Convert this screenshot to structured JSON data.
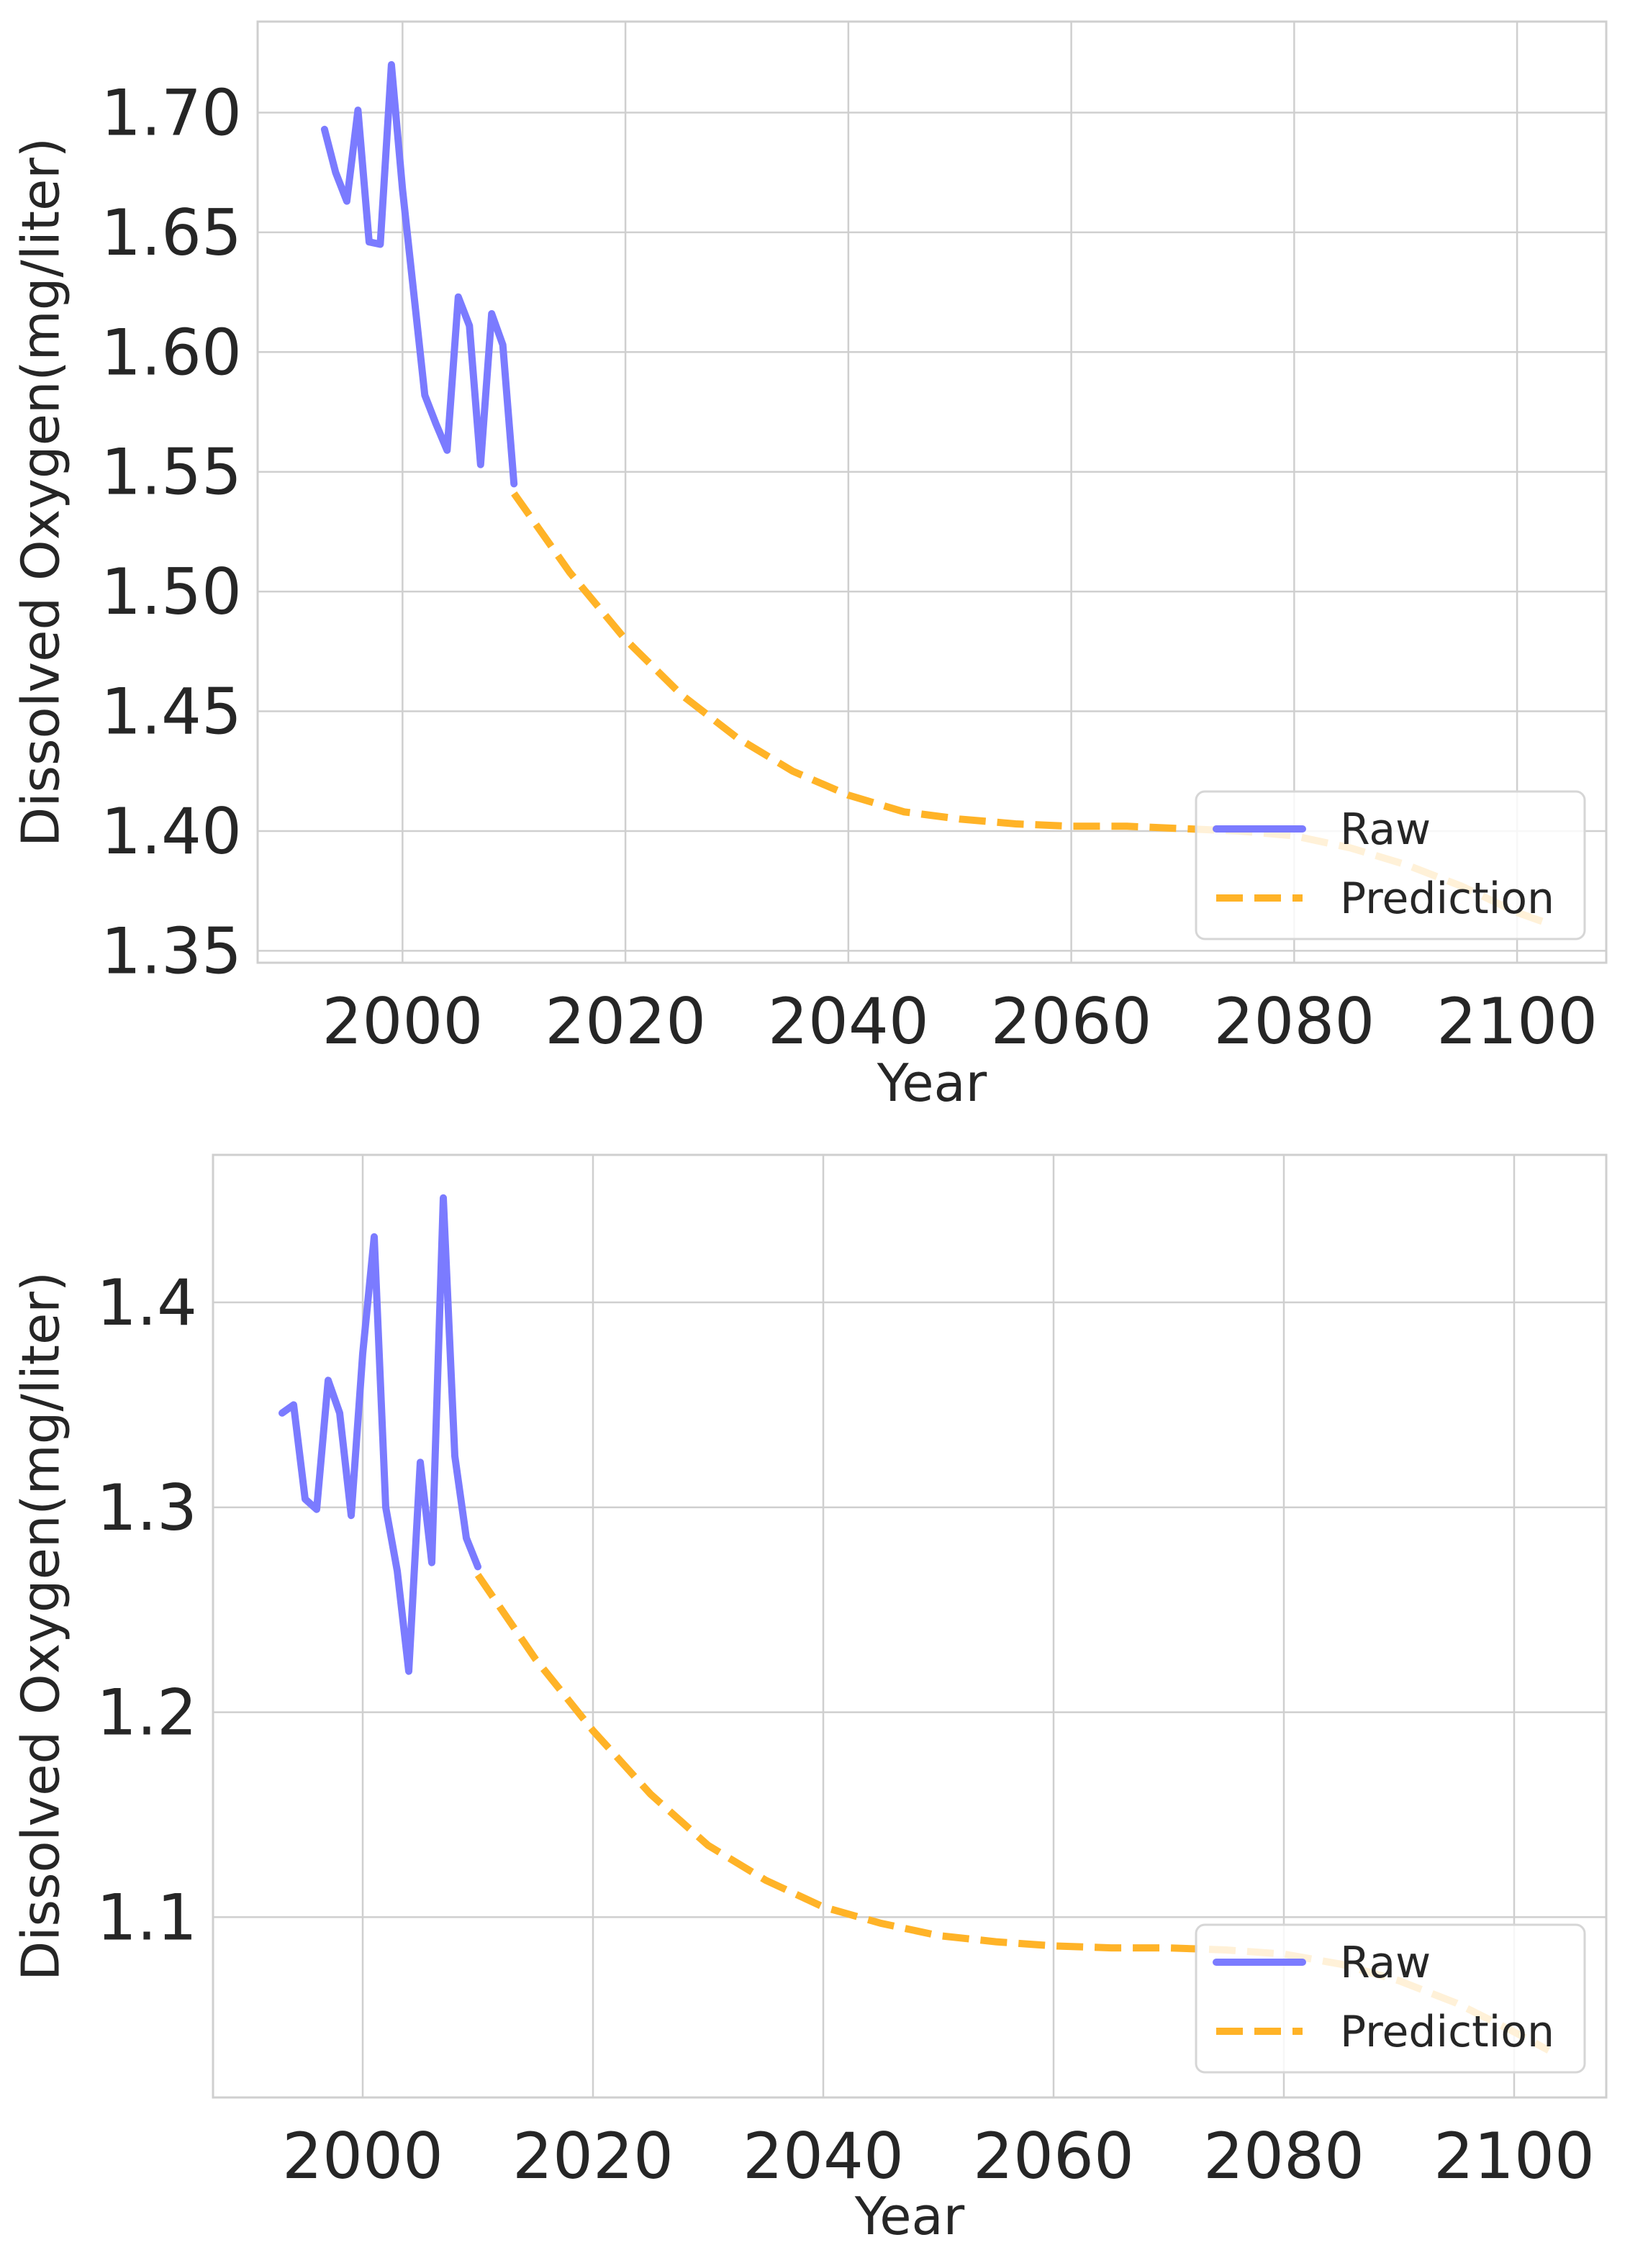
{
  "chart_data": [
    {
      "type": "line",
      "xlabel": "Year",
      "ylabel": "Dissolved Oxygen(mg/liter)",
      "xlim": [
        1987,
        2108
      ],
      "ylim": [
        1.345,
        1.738
      ],
      "xticks": [
        2000,
        2020,
        2040,
        2060,
        2080,
        2100
      ],
      "xtick_labels": [
        "2000",
        "2020",
        "2040",
        "2060",
        "2080",
        "2100"
      ],
      "yticks": [
        1.35,
        1.4,
        1.45,
        1.5,
        1.55,
        1.6,
        1.65,
        1.7
      ],
      "ytick_labels": [
        "1.35",
        "1.40",
        "1.45",
        "1.50",
        "1.55",
        "1.60",
        "1.65",
        "1.70"
      ],
      "grid": true,
      "legend": "lower-right",
      "series": [
        {
          "name": "Raw",
          "style": "solid",
          "color": "#7b7bff",
          "x": [
            1993,
            1994,
            1995,
            1996,
            1997,
            1998,
            1999,
            2000,
            2001,
            2002,
            2003,
            2004,
            2005,
            2006,
            2007,
            2008,
            2009,
            2010
          ],
          "y": [
            1.693,
            1.675,
            1.663,
            1.701,
            1.646,
            1.645,
            1.72,
            1.668,
            1.625,
            1.582,
            1.57,
            1.559,
            1.623,
            1.611,
            1.553,
            1.616,
            1.603,
            1.545
          ]
        },
        {
          "name": "Prediction",
          "style": "dashed",
          "color": "#ffb327",
          "x": [
            2010,
            2015,
            2020,
            2025,
            2030,
            2035,
            2040,
            2045,
            2050,
            2055,
            2060,
            2065,
            2070,
            2075,
            2080,
            2085,
            2090,
            2095,
            2100,
            2103
          ],
          "y": [
            1.541,
            1.508,
            1.48,
            1.457,
            1.439,
            1.425,
            1.415,
            1.408,
            1.405,
            1.403,
            1.402,
            1.402,
            1.401,
            1.4,
            1.398,
            1.393,
            1.386,
            1.377,
            1.366,
            1.361
          ]
        }
      ]
    },
    {
      "type": "line",
      "xlabel": "Year",
      "ylabel": "Dissolved Oxygen(mg/liter)",
      "xlim": [
        1987,
        2108
      ],
      "ylim": [
        1.012,
        1.472
      ],
      "xticks": [
        2000,
        2020,
        2040,
        2060,
        2080,
        2100
      ],
      "xtick_labels": [
        "2000",
        "2020",
        "2040",
        "2060",
        "2080",
        "2100"
      ],
      "yticks": [
        1.1,
        1.2,
        1.3,
        1.4
      ],
      "ytick_labels": [
        "1.1",
        "1.2",
        "1.3",
        "1.4"
      ],
      "grid": true,
      "legend": "lower-right",
      "series": [
        {
          "name": "Raw",
          "style": "solid",
          "color": "#7b7bff",
          "x": [
            1993,
            1994,
            1995,
            1996,
            1997,
            1998,
            1999,
            2000,
            2001,
            2002,
            2003,
            2004,
            2005,
            2006,
            2007,
            2008,
            2009,
            2010
          ],
          "y": [
            1.346,
            1.35,
            1.304,
            1.299,
            1.362,
            1.346,
            1.296,
            1.375,
            1.432,
            1.3,
            1.269,
            1.22,
            1.322,
            1.273,
            1.451,
            1.325,
            1.285,
            1.271
          ]
        },
        {
          "name": "Prediction",
          "style": "dashed",
          "color": "#ffb327",
          "x": [
            2010,
            2015,
            2020,
            2025,
            2030,
            2035,
            2040,
            2045,
            2050,
            2055,
            2060,
            2065,
            2070,
            2075,
            2080,
            2085,
            2090,
            2095,
            2100,
            2103
          ],
          "y": [
            1.267,
            1.226,
            1.191,
            1.16,
            1.135,
            1.118,
            1.105,
            1.097,
            1.091,
            1.088,
            1.086,
            1.085,
            1.085,
            1.084,
            1.082,
            1.077,
            1.069,
            1.058,
            1.044,
            1.035
          ]
        }
      ]
    }
  ]
}
